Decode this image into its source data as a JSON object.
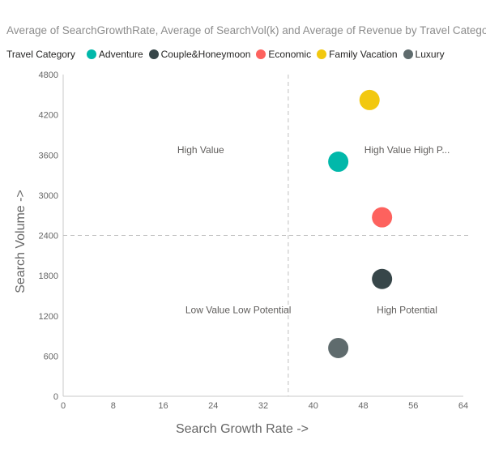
{
  "chart_data": {
    "type": "scatter",
    "title": "Average of SearchGrowthRate, Average of SearchVol(k) and Average of Revenue by Travel Category",
    "xlabel": "Search Growth Rate ->",
    "ylabel": "Search Volume ->",
    "xlim": [
      0,
      64
    ],
    "ylim": [
      0,
      4800
    ],
    "x_ticks": [
      "0",
      "8",
      "16",
      "24",
      "32",
      "40",
      "48",
      "56",
      "64"
    ],
    "y_ticks": [
      "0",
      "600",
      "1200",
      "1800",
      "2400",
      "3000",
      "3600",
      "4200",
      "4800"
    ],
    "legend_title": "Travel Category",
    "legend_position": "top-left",
    "reference_lines": {
      "x": 36,
      "y": 2400
    },
    "quadrant_labels": [
      {
        "text": "High Value",
        "x": 22,
        "y": 3630
      },
      {
        "text": "High Value High P...",
        "x": 55,
        "y": 3630
      },
      {
        "text": "Low Value Low Potential",
        "x": 28,
        "y": 1240
      },
      {
        "text": "High Potential",
        "x": 55,
        "y": 1240
      }
    ],
    "series": [
      {
        "name": "Adventure",
        "color": "#01B8AA",
        "x": 44,
        "y": 3500
      },
      {
        "name": "Couple&Honeymoon",
        "color": "#374649",
        "x": 51,
        "y": 1750
      },
      {
        "name": "Economic",
        "color": "#FD625E",
        "x": 51,
        "y": 2670
      },
      {
        "name": "Family Vacation",
        "color": "#F2C80F",
        "x": 49,
        "y": 4420
      },
      {
        "name": "Luxury",
        "color": "#5F6B6D",
        "x": 44,
        "y": 720
      }
    ]
  }
}
